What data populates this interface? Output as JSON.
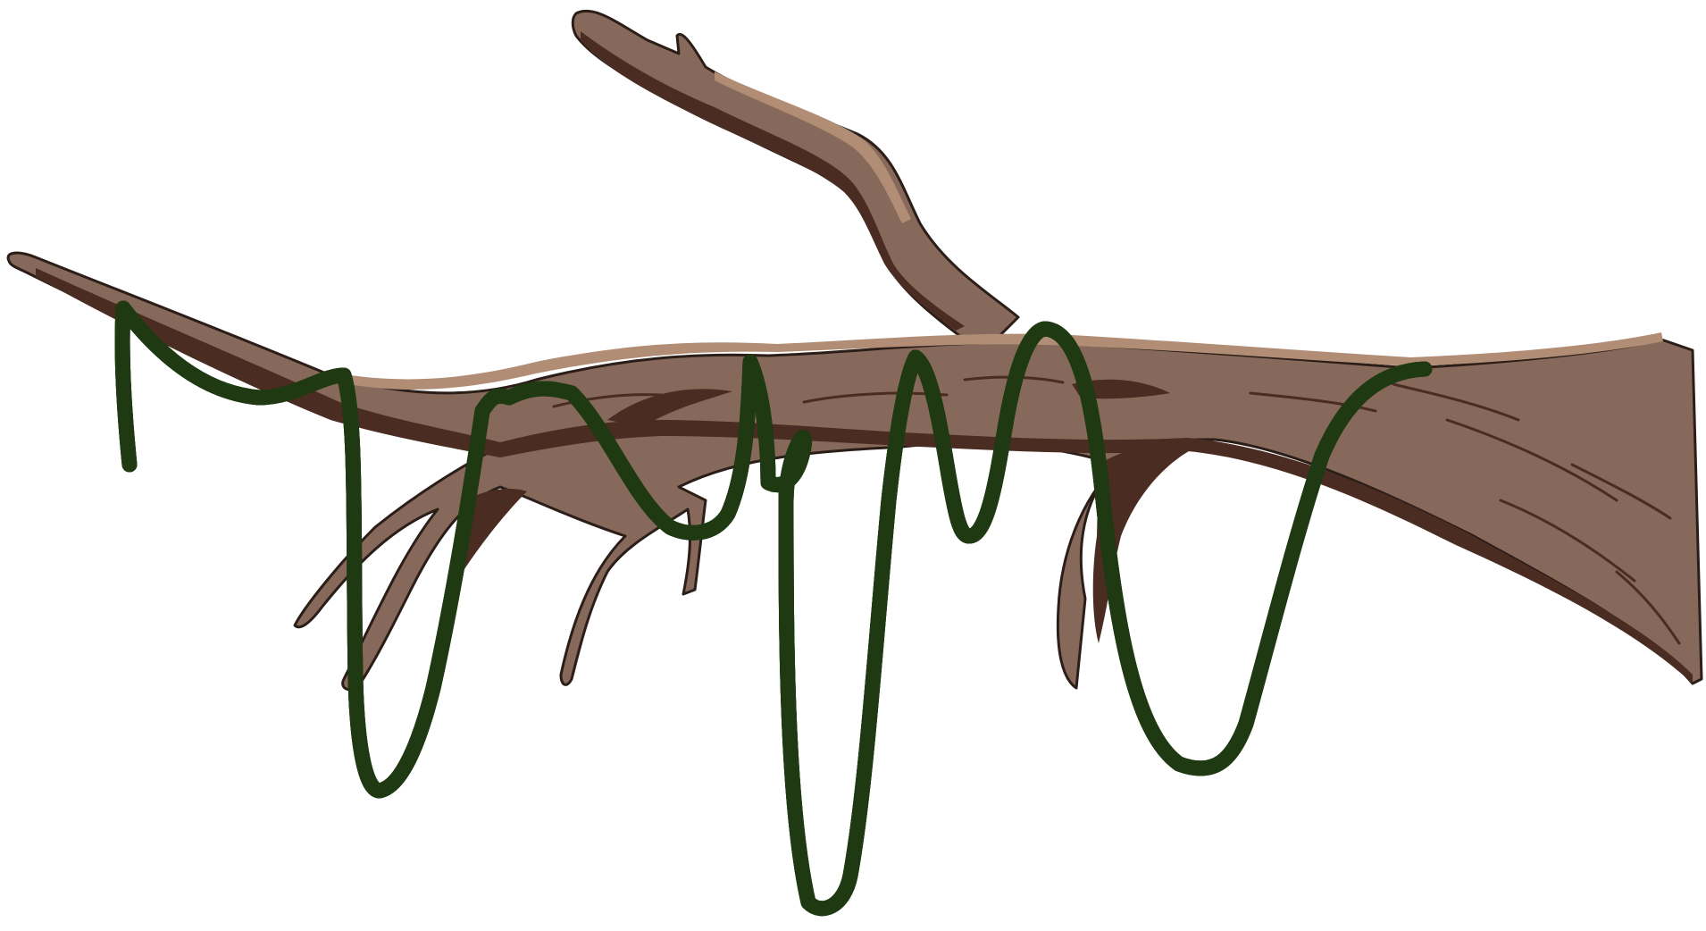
{
  "image": {
    "subject": "",
    "background_color": "#ffffff"
  },
  "colors": {
    "bark": "#86695a",
    "bark_shadow": "#4a2c22",
    "bark_highlight": "#b08d74",
    "outline": "#2b1d18",
    "vine": "#56b136",
    "vine_highlight": "#c9d93a",
    "vine_outline": "#1f3a12"
  },
  "elements": {
    "branch": {
      "icon": "tree-branch-icon"
    },
    "vine": {
      "icon": "vine-icon",
      "loop_count": 7
    }
  }
}
